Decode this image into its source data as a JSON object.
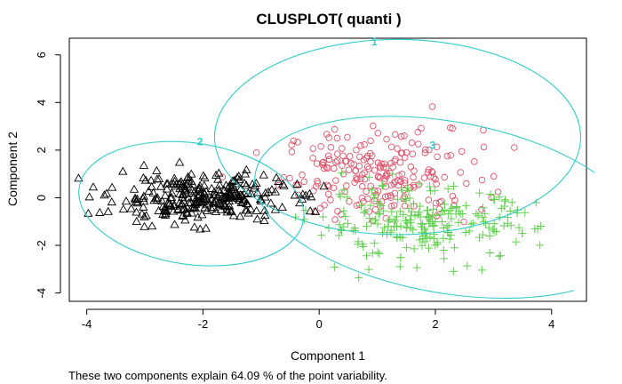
{
  "chart_data": {
    "type": "scatter",
    "title": "CLUSPLOT( quanti )",
    "xlabel": "Component 1",
    "ylabel": "Component 2",
    "xlim": [
      -4.3,
      4.6
    ],
    "ylim": [
      -4.35,
      6.7
    ],
    "x_ticks": [
      -4,
      -2,
      0,
      2,
      4
    ],
    "y_ticks": [
      -4,
      -2,
      0,
      2,
      4,
      6
    ],
    "footnote": "These two components explain 64.09 % of the point variability.",
    "ellipse_color": "#33cccc",
    "clusters": [
      {
        "label": "1",
        "marker": "circle",
        "color": "#df536b",
        "center": [
          0.95,
          6.55
        ],
        "ellipse": {
          "cx": 1.35,
          "cy": 2.55,
          "rx": 3.15,
          "ry": 4.1,
          "rotation_deg": 0
        },
        "point_center": [
          1.1,
          1.0
        ],
        "spread": [
          0.85,
          0.95
        ],
        "count": 220
      },
      {
        "label": "2",
        "marker": "triangle",
        "color": "#000000",
        "center": [
          -2.05,
          2.35
        ],
        "ellipse": {
          "cx": -2.2,
          "cy": -0.25,
          "rx": 1.95,
          "ry": 2.55,
          "rotation_deg": 8
        },
        "point_center": [
          -2.1,
          0.0
        ],
        "spread": [
          0.75,
          0.5
        ],
        "count": 300
      },
      {
        "label": "3",
        "marker": "plus",
        "color": "#61d04f",
        "center": [
          1.95,
          2.2
        ],
        "ellipse": {
          "cx": 2.2,
          "cy": -0.4,
          "rx": 3.35,
          "ry": 3.6,
          "rotation_deg": 10
        },
        "point_center": [
          1.8,
          -1.1
        ],
        "spread": [
          0.95,
          0.75
        ],
        "count": 230
      }
    ],
    "grid": false,
    "legend": "none"
  }
}
